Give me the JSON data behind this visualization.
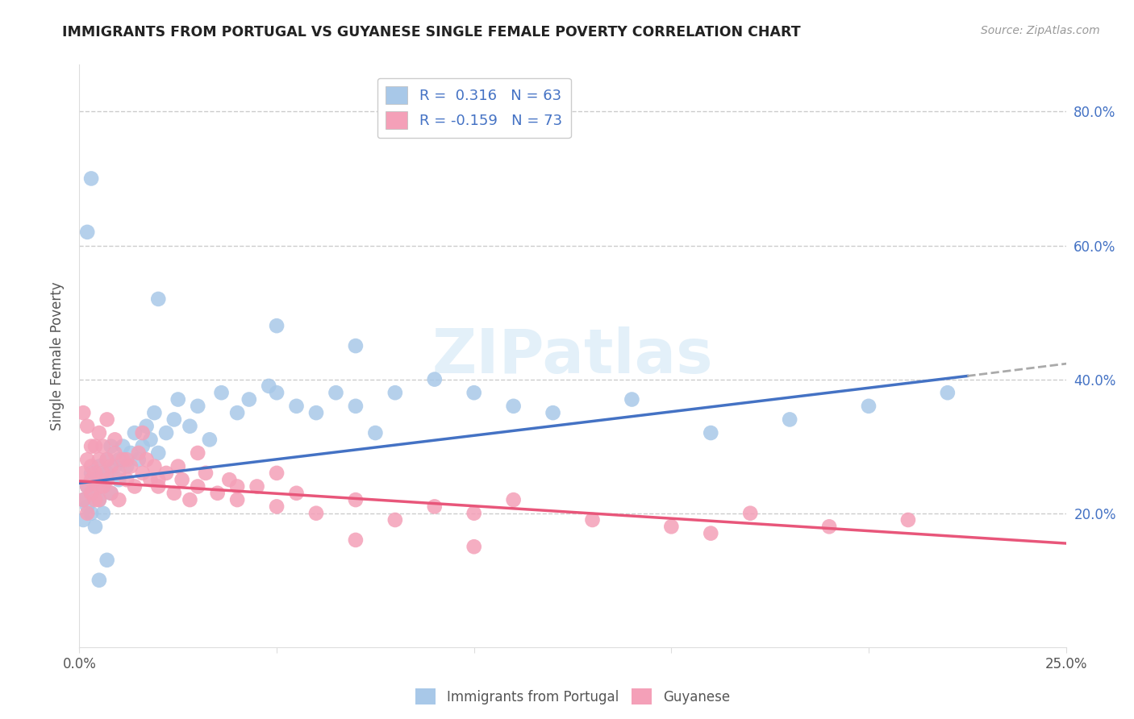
{
  "title": "IMMIGRANTS FROM PORTUGAL VS GUYANESE SINGLE FEMALE POVERTY CORRELATION CHART",
  "source": "Source: ZipAtlas.com",
  "ylabel": "Single Female Poverty",
  "xlim": [
    0.0,
    0.25
  ],
  "ylim": [
    0.0,
    0.87
  ],
  "legend1_label": "R =  0.316   N = 63",
  "legend2_label": "R = -0.159   N = 73",
  "series1_color": "#a8c8e8",
  "series2_color": "#f4a0b8",
  "trendline1_color": "#4472C4",
  "trendline2_color": "#E8567A",
  "trendline1_x0": 0.0,
  "trendline1_y0": 0.245,
  "trendline1_x1": 0.225,
  "trendline1_y1": 0.405,
  "trendline1_ext_x1": 0.255,
  "trendline1_ext_y1": 0.427,
  "trendline2_x0": 0.0,
  "trendline2_y0": 0.248,
  "trendline2_x1": 0.25,
  "trendline2_y1": 0.155,
  "portugal_x": [
    0.001,
    0.001,
    0.002,
    0.002,
    0.003,
    0.003,
    0.003,
    0.004,
    0.004,
    0.005,
    0.005,
    0.006,
    0.006,
    0.007,
    0.007,
    0.008,
    0.008,
    0.009,
    0.01,
    0.01,
    0.011,
    0.012,
    0.013,
    0.014,
    0.015,
    0.016,
    0.017,
    0.018,
    0.019,
    0.02,
    0.022,
    0.024,
    0.025,
    0.028,
    0.03,
    0.033,
    0.036,
    0.04,
    0.043,
    0.048,
    0.05,
    0.055,
    0.06,
    0.065,
    0.07,
    0.075,
    0.08,
    0.09,
    0.1,
    0.11,
    0.12,
    0.14,
    0.16,
    0.18,
    0.2,
    0.22,
    0.003,
    0.02,
    0.05,
    0.07,
    0.002,
    0.005,
    0.007
  ],
  "portugal_y": [
    0.19,
    0.22,
    0.21,
    0.24,
    0.2,
    0.23,
    0.26,
    0.18,
    0.25,
    0.22,
    0.27,
    0.24,
    0.2,
    0.28,
    0.26,
    0.23,
    0.3,
    0.27,
    0.25,
    0.28,
    0.3,
    0.27,
    0.29,
    0.32,
    0.28,
    0.3,
    0.33,
    0.31,
    0.35,
    0.29,
    0.32,
    0.34,
    0.37,
    0.33,
    0.36,
    0.31,
    0.38,
    0.35,
    0.37,
    0.39,
    0.38,
    0.36,
    0.35,
    0.38,
    0.36,
    0.32,
    0.38,
    0.4,
    0.38,
    0.36,
    0.35,
    0.37,
    0.32,
    0.34,
    0.36,
    0.38,
    0.7,
    0.52,
    0.48,
    0.45,
    0.62,
    0.1,
    0.13
  ],
  "guyanese_x": [
    0.001,
    0.001,
    0.002,
    0.002,
    0.002,
    0.003,
    0.003,
    0.003,
    0.004,
    0.004,
    0.004,
    0.005,
    0.005,
    0.005,
    0.006,
    0.006,
    0.006,
    0.007,
    0.007,
    0.008,
    0.008,
    0.009,
    0.01,
    0.01,
    0.011,
    0.012,
    0.013,
    0.014,
    0.015,
    0.016,
    0.017,
    0.018,
    0.019,
    0.02,
    0.022,
    0.024,
    0.026,
    0.028,
    0.03,
    0.032,
    0.035,
    0.038,
    0.04,
    0.045,
    0.05,
    0.055,
    0.06,
    0.07,
    0.08,
    0.09,
    0.1,
    0.11,
    0.13,
    0.15,
    0.17,
    0.19,
    0.21,
    0.001,
    0.002,
    0.003,
    0.005,
    0.007,
    0.009,
    0.012,
    0.016,
    0.02,
    0.025,
    0.03,
    0.04,
    0.05,
    0.07,
    0.1,
    0.16
  ],
  "guyanese_y": [
    0.22,
    0.26,
    0.24,
    0.28,
    0.2,
    0.25,
    0.23,
    0.27,
    0.22,
    0.26,
    0.3,
    0.24,
    0.28,
    0.22,
    0.26,
    0.3,
    0.24,
    0.28,
    0.25,
    0.27,
    0.23,
    0.29,
    0.26,
    0.22,
    0.28,
    0.25,
    0.27,
    0.24,
    0.29,
    0.26,
    0.28,
    0.25,
    0.27,
    0.24,
    0.26,
    0.23,
    0.25,
    0.22,
    0.24,
    0.26,
    0.23,
    0.25,
    0.22,
    0.24,
    0.21,
    0.23,
    0.2,
    0.22,
    0.19,
    0.21,
    0.2,
    0.22,
    0.19,
    0.18,
    0.2,
    0.18,
    0.19,
    0.35,
    0.33,
    0.3,
    0.32,
    0.34,
    0.31,
    0.28,
    0.32,
    0.25,
    0.27,
    0.29,
    0.24,
    0.26,
    0.16,
    0.15,
    0.17
  ]
}
